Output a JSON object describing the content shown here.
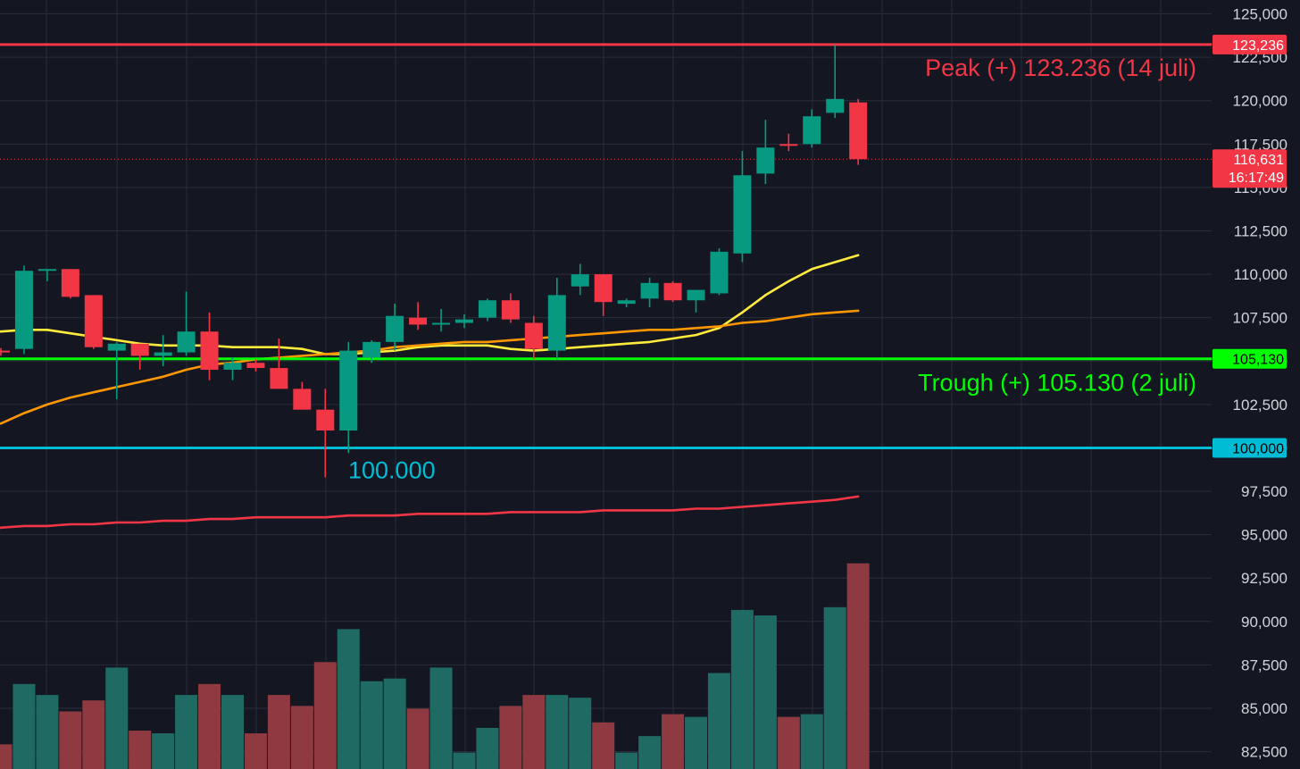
{
  "chart_data": {
    "type": "candlestick",
    "title": "",
    "xlabel": "",
    "ylabel": "",
    "ylim": [
      81500,
      125800
    ],
    "grid": true,
    "y_ticks": [
      82500,
      85000,
      87500,
      90000,
      92500,
      95000,
      97500,
      100000,
      102500,
      105000,
      107500,
      110000,
      112500,
      115000,
      117500,
      120000,
      122500,
      125000
    ],
    "y_tick_labels": [
      "82,500",
      "85,000",
      "87,500",
      "90,000",
      "92,500",
      "95,000",
      "97,500",
      "100,000",
      "102,500",
      "105,000",
      "107,500",
      "110,000",
      "112,500",
      "115,000",
      "117,500",
      "120,000",
      "122,500",
      "125,000"
    ],
    "candles": [
      {
        "o": 105600,
        "h": 105750,
        "l": 105300,
        "c": 105500
      },
      {
        "o": 105700,
        "h": 110500,
        "l": 105400,
        "c": 110200
      },
      {
        "o": 110200,
        "h": 110300,
        "l": 109600,
        "c": 110300
      },
      {
        "o": 110300,
        "h": 110300,
        "l": 108600,
        "c": 108700
      },
      {
        "o": 108800,
        "h": 108800,
        "l": 105700,
        "c": 105800
      },
      {
        "o": 105600,
        "h": 106100,
        "l": 102800,
        "c": 106000
      },
      {
        "o": 106000,
        "h": 106000,
        "l": 104500,
        "c": 105300
      },
      {
        "o": 105300,
        "h": 106500,
        "l": 104700,
        "c": 105500
      },
      {
        "o": 105500,
        "h": 109000,
        "l": 105300,
        "c": 106700
      },
      {
        "o": 106700,
        "h": 107800,
        "l": 103900,
        "c": 104500
      },
      {
        "o": 104500,
        "h": 105200,
        "l": 103900,
        "c": 104900
      },
      {
        "o": 104900,
        "h": 105100,
        "l": 104400,
        "c": 104600
      },
      {
        "o": 104600,
        "h": 106300,
        "l": 103800,
        "c": 103400
      },
      {
        "o": 103400,
        "h": 103800,
        "l": 102300,
        "c": 102200
      },
      {
        "o": 102200,
        "h": 103400,
        "l": 98300,
        "c": 101000
      },
      {
        "o": 101000,
        "h": 106100,
        "l": 99700,
        "c": 105600
      },
      {
        "o": 105200,
        "h": 106200,
        "l": 104900,
        "c": 106100
      },
      {
        "o": 106100,
        "h": 108300,
        "l": 105600,
        "c": 107600
      },
      {
        "o": 107500,
        "h": 108400,
        "l": 106800,
        "c": 107100
      },
      {
        "o": 107100,
        "h": 108000,
        "l": 106700,
        "c": 107200
      },
      {
        "o": 107200,
        "h": 107700,
        "l": 106900,
        "c": 107400
      },
      {
        "o": 107500,
        "h": 108600,
        "l": 107300,
        "c": 108500
      },
      {
        "o": 108500,
        "h": 108900,
        "l": 107200,
        "c": 107400
      },
      {
        "o": 107200,
        "h": 107600,
        "l": 105100,
        "c": 105700
      },
      {
        "o": 105600,
        "h": 109800,
        "l": 105100,
        "c": 108800
      },
      {
        "o": 109300,
        "h": 110600,
        "l": 108800,
        "c": 110000
      },
      {
        "o": 110000,
        "h": 110000,
        "l": 107600,
        "c": 108400
      },
      {
        "o": 108300,
        "h": 108600,
        "l": 108100,
        "c": 108500
      },
      {
        "o": 108600,
        "h": 109800,
        "l": 108100,
        "c": 109500
      },
      {
        "o": 109500,
        "h": 109600,
        "l": 108400,
        "c": 108500
      },
      {
        "o": 108500,
        "h": 109100,
        "l": 107800,
        "c": 109100
      },
      {
        "o": 108900,
        "h": 111500,
        "l": 108800,
        "c": 111300
      },
      {
        "o": 111200,
        "h": 117100,
        "l": 110700,
        "c": 115700
      },
      {
        "o": 115800,
        "h": 118900,
        "l": 115200,
        "c": 117300
      },
      {
        "o": 117500,
        "h": 118100,
        "l": 117100,
        "c": 117400
      },
      {
        "o": 117500,
        "h": 119500,
        "l": 117300,
        "c": 119100
      },
      {
        "o": 119300,
        "h": 123236,
        "l": 119000,
        "c": 120100
      },
      {
        "o": 119900,
        "h": 120100,
        "l": 116300,
        "c": 116631
      }
    ],
    "volume": [
      0.09,
      0.31,
      0.27,
      0.21,
      0.25,
      0.37,
      0.14,
      0.13,
      0.27,
      0.31,
      0.27,
      0.13,
      0.27,
      0.23,
      0.39,
      0.51,
      0.32,
      0.33,
      0.22,
      0.37,
      0.06,
      0.15,
      0.23,
      0.27,
      0.27,
      0.26,
      0.17,
      0.06,
      0.12,
      0.2,
      0.19,
      0.35,
      0.58,
      0.56,
      0.19,
      0.2,
      0.59,
      0.75
    ],
    "series": [
      {
        "values": [
          106700,
          106800,
          106800,
          106600,
          106400,
          106200,
          106000,
          105900,
          105900,
          105900,
          105800,
          105800,
          105800,
          105700,
          105400,
          105400,
          105500,
          105600,
          105800,
          105900,
          105900,
          105900,
          105700,
          105600,
          105700,
          105800,
          105900,
          106000,
          106100,
          106300,
          106500,
          106900,
          107800,
          108800,
          109600,
          110300,
          110700,
          111100
        ]
      },
      {
        "values": [
          101400,
          102000,
          102500,
          102900,
          103200,
          103500,
          103800,
          104100,
          104500,
          104800,
          104900,
          105100,
          105200,
          105300,
          105400,
          105500,
          105600,
          105800,
          105900,
          106000,
          106100,
          106100,
          106200,
          106300,
          106400,
          106500,
          106600,
          106700,
          106800,
          106800,
          106900,
          107000,
          107200,
          107300,
          107500,
          107700,
          107800,
          107900
        ]
      },
      {
        "values": [
          95400,
          95500,
          95500,
          95600,
          95600,
          95700,
          95700,
          95800,
          95800,
          95900,
          95900,
          96000,
          96000,
          96000,
          96000,
          96100,
          96100,
          96100,
          96200,
          96200,
          96200,
          96200,
          96300,
          96300,
          96300,
          96300,
          96400,
          96400,
          96400,
          96400,
          96500,
          96500,
          96600,
          96700,
          96800,
          96900,
          97000,
          97200
        ]
      }
    ],
    "levels": [
      {
        "price": 123236,
        "tag": "123,236",
        "color": "#f23645",
        "annotation": "Peak (+) 123.236 (14 juli)"
      },
      {
        "price": 105130,
        "tag": "105,130",
        "color": "#00ff00",
        "annotation": "Trough (+) 105.130 (2 juli)"
      },
      {
        "price": 100000,
        "tag": "100,000",
        "color": "#00bcd4",
        "annotation": "100.000"
      }
    ],
    "current_price": {
      "price": 116631,
      "tag": "116,631",
      "countdown": "16:17:49",
      "color": "#f23645"
    }
  },
  "colors": {
    "background": "#141722",
    "grid": "#2a2e39",
    "up": "#089981",
    "down": "#f23645",
    "ma_fast": "#ffeb3b",
    "ma_mid": "#ff9800",
    "ma_slow": "#f23645"
  }
}
